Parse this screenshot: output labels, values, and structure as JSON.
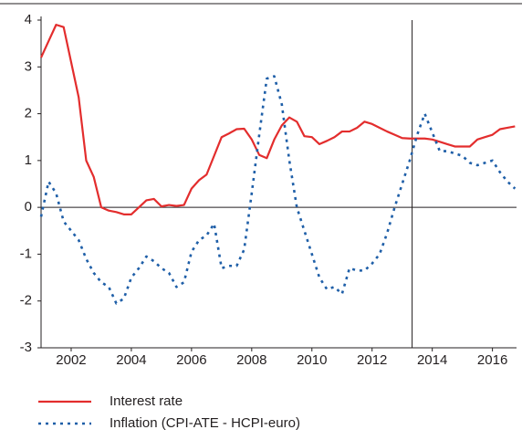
{
  "chart_data": {
    "type": "line",
    "x": [
      2001,
      2001.25,
      2001.5,
      2001.75,
      2002,
      2002.25,
      2002.5,
      2002.75,
      2003,
      2003.25,
      2003.5,
      2003.75,
      2004,
      2004.25,
      2004.5,
      2004.75,
      2005,
      2005.25,
      2005.5,
      2005.75,
      2006,
      2006.25,
      2006.5,
      2006.75,
      2007,
      2007.25,
      2007.5,
      2007.75,
      2008,
      2008.25,
      2008.5,
      2008.75,
      2009,
      2009.25,
      2009.5,
      2009.75,
      2010,
      2010.25,
      2010.5,
      2010.75,
      2011,
      2011.25,
      2011.5,
      2011.75,
      2012,
      2012.25,
      2012.5,
      2012.75,
      2013,
      2013.25,
      2013.5,
      2013.75,
      2014,
      2014.25,
      2014.5,
      2014.75,
      2015,
      2015.25,
      2015.5,
      2015.75,
      2016,
      2016.25,
      2016.5,
      2016.75
    ],
    "series": [
      {
        "name": "Interest rate",
        "color": "#e32d2d",
        "style": "solid",
        "values": [
          3.2,
          3.55,
          3.9,
          3.85,
          3.1,
          2.35,
          1.0,
          0.65,
          0.0,
          -0.07,
          -0.1,
          -0.15,
          -0.15,
          0.0,
          0.15,
          0.18,
          0.02,
          0.05,
          0.03,
          0.05,
          0.4,
          0.58,
          0.7,
          1.1,
          1.5,
          1.58,
          1.67,
          1.68,
          1.45,
          1.12,
          1.05,
          1.45,
          1.75,
          1.92,
          1.83,
          1.52,
          1.5,
          1.35,
          1.42,
          1.5,
          1.62,
          1.62,
          1.7,
          1.83,
          1.78,
          1.7,
          1.62,
          1.55,
          1.48,
          1.47,
          1.47,
          1.47,
          1.45,
          1.4,
          1.35,
          1.3,
          1.3,
          1.3,
          1.45,
          1.5,
          1.55,
          1.67,
          1.7,
          1.73
        ]
      },
      {
        "name": "Inflation (CPI-ATE - HCPI-euro)",
        "color": "#1f5fa8",
        "style": "dotted",
        "values": [
          -0.2,
          0.55,
          0.3,
          -0.3,
          -0.5,
          -0.7,
          -1.1,
          -1.4,
          -1.6,
          -1.7,
          -2.05,
          -1.95,
          -1.5,
          -1.3,
          -1.05,
          -1.15,
          -1.3,
          -1.4,
          -1.7,
          -1.6,
          -0.95,
          -0.7,
          -0.6,
          -0.35,
          -1.3,
          -1.25,
          -1.25,
          -0.9,
          0.3,
          1.55,
          2.75,
          2.8,
          2.2,
          1.0,
          0.0,
          -0.5,
          -1.0,
          -1.5,
          -1.75,
          -1.7,
          -1.85,
          -1.3,
          -1.35,
          -1.35,
          -1.2,
          -1.0,
          -0.55,
          0.0,
          0.5,
          1.0,
          1.55,
          2.0,
          1.6,
          1.2,
          1.2,
          1.15,
          1.1,
          0.95,
          0.9,
          0.95,
          1.0,
          0.75,
          0.55,
          0.4
        ]
      }
    ],
    "xlim": [
      2001,
      2016.8
    ],
    "xticks": [
      2002,
      2004,
      2006,
      2008,
      2010,
      2012,
      2014,
      2016
    ],
    "ylim": [
      -3,
      4
    ],
    "yticks": [
      -3,
      -2,
      -1,
      0,
      1,
      2,
      3,
      4
    ],
    "vline": 2013.33
  }
}
